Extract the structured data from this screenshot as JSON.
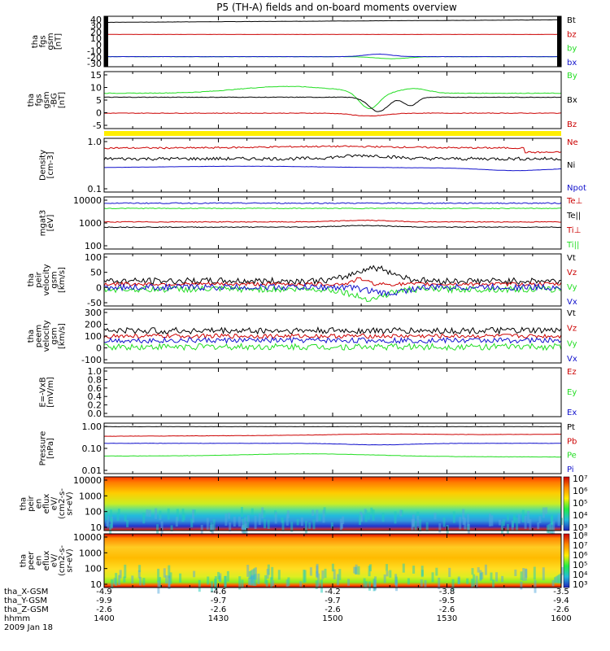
{
  "title": "P5 (TH-A) fields and on-board moments overview",
  "colors": {
    "black": "#000000",
    "red": "#cc0000",
    "green": "#22dd22",
    "blue": "#1111cc",
    "yellow": "#ffee00"
  },
  "panels": [
    {
      "id": "fgs",
      "ylabel": [
        "tha",
        "fgs",
        "gsm",
        "[nT]"
      ],
      "ticks": [
        "40",
        "30",
        "20",
        "10",
        "0",
        "-10",
        "-20",
        "-30"
      ],
      "yrange": [
        -30,
        40
      ],
      "legend": [
        {
          "t": "Bt",
          "c": "black"
        },
        {
          "t": "bz",
          "c": "red"
        },
        {
          "t": "by",
          "c": "green"
        },
        {
          "t": "bx",
          "c": "blue"
        }
      ]
    },
    {
      "id": "fgs_dsl",
      "ylabel": [
        "tha",
        "fgs",
        "gsm",
        "-BG",
        "[nT]"
      ],
      "ticks": [
        "15",
        "10",
        "5",
        "0",
        "-5"
      ],
      "yrange": [
        -7,
        15
      ],
      "legend": [
        {
          "t": "By",
          "c": "green"
        },
        {
          "t": "Bx",
          "c": "black"
        },
        {
          "t": "Bz",
          "c": "red"
        }
      ]
    },
    {
      "id": "density",
      "ylabel": [
        "Density",
        "[cm-3]"
      ],
      "ticks": [
        "1.0",
        "0.1"
      ],
      "yrange": [
        0.1,
        1.0
      ],
      "legend": [
        {
          "t": "Ne",
          "c": "red"
        },
        {
          "t": "Ni",
          "c": "black"
        },
        {
          "t": "Npot",
          "c": "blue"
        }
      ]
    },
    {
      "id": "temp",
      "ylabel": [
        "mgat3",
        "[eV]"
      ],
      "ticks": [
        "10000",
        "1000",
        "100"
      ],
      "yrange": [
        100,
        10000
      ],
      "legend": [
        {
          "t": "Te⊥",
          "c": "red"
        },
        {
          "t": "Te||",
          "c": "black"
        },
        {
          "t": "Ti⊥",
          "c": "red"
        },
        {
          "t": "Ti||",
          "c": "green"
        }
      ]
    },
    {
      "id": "peir_v",
      "ylabel": [
        "tha",
        "peir",
        "velocity",
        "gsm",
        "[km/s]"
      ],
      "ticks": [
        "100",
        "50",
        "0",
        "-50"
      ],
      "yrange": [
        -70,
        100
      ],
      "legend": [
        {
          "t": "Vt",
          "c": "black"
        },
        {
          "t": "Vz",
          "c": "red"
        },
        {
          "t": "Vy",
          "c": "green"
        },
        {
          "t": "Vx",
          "c": "blue"
        }
      ]
    },
    {
      "id": "peem_v",
      "ylabel": [
        "tha",
        "peem",
        "velocity",
        "gsm",
        "[km/s]"
      ],
      "ticks": [
        "300",
        "200",
        "100",
        "0",
        "-100"
      ],
      "yrange": [
        -150,
        300
      ],
      "legend": [
        {
          "t": "Vt",
          "c": "black"
        },
        {
          "t": "Vz",
          "c": "red"
        },
        {
          "t": "Vy",
          "c": "green"
        },
        {
          "t": "Vx",
          "c": "blue"
        }
      ]
    },
    {
      "id": "efield",
      "ylabel": [
        "E=-VxB",
        "[mV/m]"
      ],
      "ticks": [
        "1.0",
        "0.8",
        "0.6",
        "0.4",
        "0.2",
        "0.0"
      ],
      "yrange": [
        0,
        1.0
      ],
      "legend": [
        {
          "t": "Ez",
          "c": "red"
        },
        {
          "t": "Ey",
          "c": "green"
        },
        {
          "t": "Ex",
          "c": "blue"
        }
      ]
    },
    {
      "id": "pressure",
      "ylabel": [
        "Pressure",
        "[nPa]"
      ],
      "ticks": [
        "1.00",
        "0.10",
        "0.01"
      ],
      "yrange": [
        0.01,
        1.0
      ],
      "legend": [
        {
          "t": "Pt",
          "c": "black"
        },
        {
          "t": "Pb",
          "c": "red"
        },
        {
          "t": "Pe",
          "c": "green"
        },
        {
          "t": "Pi",
          "c": "blue"
        }
      ]
    },
    {
      "id": "peir_spec",
      "ylabel": [
        "tha",
        "peir",
        "en",
        "eflux",
        "eV/",
        "(cm2-s-",
        "sr-eV)"
      ],
      "ticks": [
        "10000",
        "1000",
        "100",
        "10"
      ],
      "yrange": [
        10,
        10000
      ],
      "colorbar": [
        "10⁷",
        "10⁶",
        "10⁵",
        "10⁴",
        "10³"
      ]
    },
    {
      "id": "peer_spec",
      "ylabel": [
        "tha",
        "peer",
        "en",
        "eflux",
        "eV/",
        "(cm2-s-",
        "sr-eV)"
      ],
      "ticks": [
        "10000",
        "1000",
        "100",
        "10"
      ],
      "yrange": [
        10,
        10000
      ],
      "colorbar": [
        "10⁸",
        "10⁷",
        "10⁶",
        "10⁵",
        "10⁴",
        "10³"
      ]
    }
  ],
  "xaxis": {
    "labels": [
      "tha_X-GSM",
      "tha_Y-GSM",
      "tha_Z-GSM",
      "hhmm"
    ],
    "date": "2009 Jan 18",
    "rows": [
      [
        "-4.9",
        "-4.6",
        "-4.2",
        "-3.8",
        "-3.5"
      ],
      [
        "-9.9",
        "-9.7",
        "-9.7",
        "-9.5",
        "-9.4"
      ],
      [
        "-2.6",
        "-2.6",
        "-2.6",
        "-2.6",
        "-2.6"
      ],
      [
        "1400",
        "1430",
        "1500",
        "1530",
        "1600"
      ]
    ]
  },
  "chart_data": {
    "type": "line",
    "title": "P5 (TH-A) fields and on-board moments overview",
    "x": [
      "1400",
      "1430",
      "1500",
      "1530",
      "1600"
    ],
    "series_levels": {
      "fgs_Bt": 33,
      "fgs_bz": 15,
      "fgs_by": -18,
      "fgs_bx": -18,
      "fgs_dsl_By": 9,
      "fgs_dsl_Bx": 7,
      "fgs_dsl_Bz": -1,
      "density_Ne": 0.6,
      "density_Ni": 0.32,
      "density_Npot": 0.22,
      "temp_Te_perp": 5000,
      "temp_Te_par": 3000,
      "temp_Ti_perp": 1000,
      "temp_Ti_par": 800,
      "pressure_Pt": 0.75,
      "pressure_Pb": 0.35,
      "pressure_Pe": 0.06,
      "pressure_Pi": 0.2
    }
  }
}
